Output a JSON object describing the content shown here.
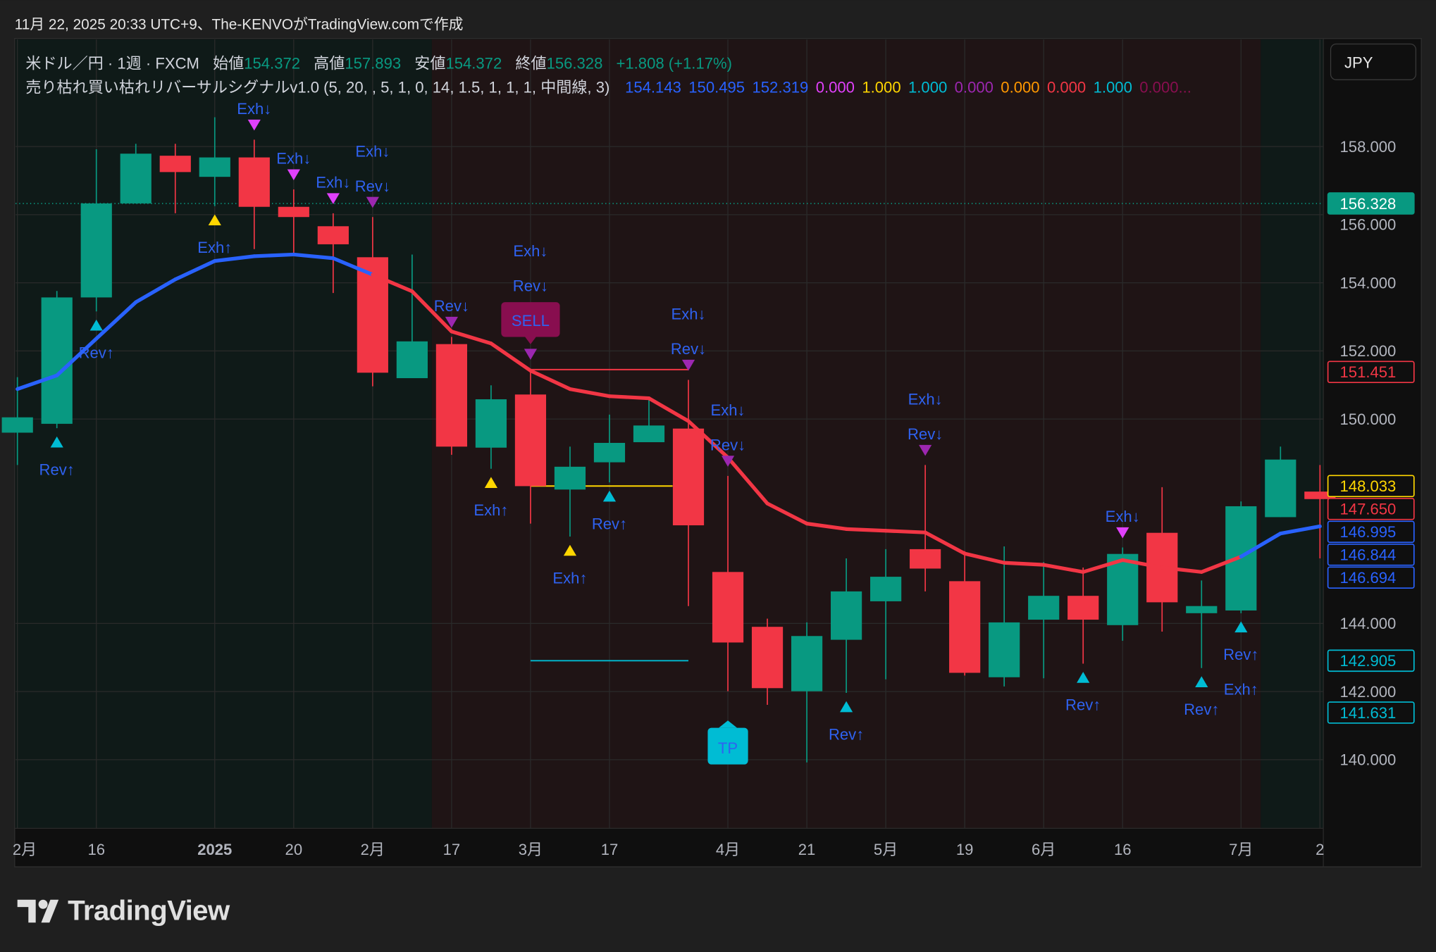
{
  "caption": "11月 22, 2025 20:33 UTC+9、The-KENVOがTradingView.comで作成",
  "legend": {
    "symbol": "米ドル／円 · 1週 · FXCM",
    "open_label": "始値",
    "open": "154.372",
    "high_label": "高値",
    "high": "157.893",
    "low_label": "安値",
    "low": "154.372",
    "close_label": "終値",
    "close": "156.328",
    "change": "+1.808 (+1.17%)",
    "indicator": "売り枯れ買い枯れリバーサルシグナルv1.0 (5, 20, , 5, 1, 0, 14, 1.5, 1, 1, 1, 中間線, 3)",
    "indicator_values": [
      {
        "v": "154.143",
        "color": "#2962ff"
      },
      {
        "v": "150.495",
        "color": "#2962ff"
      },
      {
        "v": "152.319",
        "color": "#2962ff"
      },
      {
        "v": "0.000",
        "color": "#e040fb"
      },
      {
        "v": "1.000",
        "color": "#ffd600"
      },
      {
        "v": "1.000",
        "color": "#00bcd4"
      },
      {
        "v": "0.000",
        "color": "#9c27b0"
      },
      {
        "v": "0.000",
        "color": "#ff9800"
      },
      {
        "v": "0.000",
        "color": "#f23645"
      },
      {
        "v": "1.000",
        "color": "#00bcd4"
      },
      {
        "v": "0.000...",
        "color": "#880e4f"
      }
    ]
  },
  "currency_button": "JPY",
  "logo_text": "TradingView",
  "colors": {
    "up": "#089981",
    "down": "#f23645",
    "ma_up": "#2962ff",
    "ma_down": "#f23645",
    "signal_text": "#2f62f0",
    "bg_bull": "#0f1a18",
    "bg_bear": "#1f1415"
  },
  "chart_data": {
    "type": "candlestick",
    "ylim": [
      138,
      160
    ],
    "y_ticks": [
      "158.000",
      "156.000",
      "154.000",
      "152.000",
      "150.000",
      "144.000",
      "142.000",
      "140.000"
    ],
    "y_tick_values": [
      158,
      156,
      154,
      152,
      150,
      144,
      142,
      140
    ],
    "x_ticks": [
      {
        "i": 0,
        "label": "2月"
      },
      {
        "i": 2,
        "label": "16"
      },
      {
        "i": 5,
        "label": "2025",
        "bold": true
      },
      {
        "i": 7,
        "label": "20"
      },
      {
        "i": 9,
        "label": "2月"
      },
      {
        "i": 11,
        "label": "17"
      },
      {
        "i": 13,
        "label": "3月"
      },
      {
        "i": 15,
        "label": "17"
      },
      {
        "i": 18,
        "label": "4月"
      },
      {
        "i": 20,
        "label": "21"
      },
      {
        "i": 22,
        "label": "5月"
      },
      {
        "i": 24,
        "label": "19"
      },
      {
        "i": 26,
        "label": "6月"
      },
      {
        "i": 28,
        "label": "16"
      },
      {
        "i": 31,
        "label": "7月"
      },
      {
        "i": 33,
        "label": "2"
      }
    ],
    "ohlc": [
      [
        149.6,
        151.23,
        148.65,
        150.05
      ],
      [
        149.86,
        153.76,
        149.73,
        153.57
      ],
      [
        153.57,
        157.92,
        153.16,
        156.33
      ],
      [
        156.33,
        158.08,
        156.33,
        157.79
      ],
      [
        157.73,
        158.08,
        156.04,
        157.25
      ],
      [
        157.11,
        158.86,
        156.25,
        157.68
      ],
      [
        157.68,
        158.2,
        154.99,
        156.23
      ],
      [
        156.23,
        156.74,
        154.88,
        155.93
      ],
      [
        155.66,
        156.04,
        153.7,
        155.13
      ],
      [
        154.75,
        155.93,
        150.96,
        151.36
      ],
      [
        151.2,
        154.83,
        151.2,
        152.28
      ],
      [
        152.2,
        152.41,
        148.95,
        149.19
      ],
      [
        149.16,
        150.99,
        148.54,
        150.58
      ],
      [
        150.72,
        151.47,
        146.93,
        148.03
      ],
      [
        147.93,
        149.19,
        146.55,
        148.6
      ],
      [
        148.73,
        150.13,
        148.14,
        149.3
      ],
      [
        149.32,
        150.61,
        149.32,
        149.81
      ],
      [
        149.72,
        151.15,
        144.51,
        146.88
      ],
      [
        145.51,
        148.33,
        142.01,
        143.44
      ],
      [
        143.9,
        144.14,
        141.61,
        142.1
      ],
      [
        142.01,
        144.03,
        139.92,
        143.63
      ],
      [
        143.52,
        145.91,
        141.96,
        144.94
      ],
      [
        144.65,
        146.18,
        142.36,
        145.37
      ],
      [
        146.18,
        148.65,
        144.94,
        145.61
      ],
      [
        145.24,
        146.12,
        142.47,
        142.55
      ],
      [
        142.42,
        146.26,
        142.15,
        144.03
      ],
      [
        144.11,
        145.8,
        142.39,
        144.81
      ],
      [
        144.81,
        145.64,
        142.82,
        144.11
      ],
      [
        143.95,
        146.23,
        143.49,
        146.04
      ],
      [
        146.66,
        148.0,
        143.76,
        144.62
      ],
      [
        144.3,
        145.26,
        142.69,
        144.51
      ],
      [
        144.38,
        147.58,
        144.3,
        147.44
      ],
      [
        147.12,
        149.19,
        147.12,
        148.81
      ],
      [
        147.87,
        148.65,
        145.91,
        147.65
      ]
    ],
    "ma": [
      150.88,
      151.28,
      152.36,
      153.43,
      154.1,
      154.64,
      154.78,
      154.83,
      154.72,
      154.24,
      153.75,
      152.57,
      152.22,
      151.42,
      150.88,
      150.67,
      150.61,
      149.94,
      148.87,
      147.52,
      146.93,
      146.77,
      146.72,
      146.67,
      146.05,
      145.78,
      145.72,
      145.51,
      145.86,
      145.64,
      145.51,
      145.96,
      146.64,
      146.85
    ],
    "ma_trend": [
      "up",
      "up",
      "up",
      "up",
      "up",
      "up",
      "up",
      "up",
      "up",
      "up",
      "down",
      "down",
      "down",
      "down",
      "down",
      "down",
      "down",
      "down",
      "down",
      "down",
      "down",
      "down",
      "down",
      "down",
      "down",
      "down",
      "down",
      "down",
      "down",
      "down",
      "down",
      "up",
      "up",
      "up"
    ],
    "background_regimes": [
      {
        "from": 0,
        "to": 10.5,
        "trend": "bull"
      },
      {
        "from": 10.5,
        "to": 31.5,
        "trend": "bear"
      },
      {
        "from": 31.5,
        "to": 33,
        "trend": "bull"
      }
    ],
    "signals": [
      {
        "i": 1,
        "side": "below",
        "labels": [
          "Rev↑"
        ],
        "color": "#00bcd4"
      },
      {
        "i": 2,
        "side": "below",
        "labels": [
          "Rev↑"
        ],
        "color": "#00bcd4"
      },
      {
        "i": 5,
        "side": "below",
        "labels": [
          "Exh↑"
        ],
        "color": "#ffd600"
      },
      {
        "i": 6,
        "side": "above",
        "labels": [
          "Exh↓"
        ],
        "color": "#e040fb"
      },
      {
        "i": 7,
        "side": "above",
        "labels": [
          "Exh↓"
        ],
        "color": "#e040fb"
      },
      {
        "i": 8,
        "side": "above",
        "labels": [
          "Exh↓"
        ],
        "color": "#e040fb"
      },
      {
        "i": 9,
        "side": "above",
        "labels": [
          "Rev↓",
          "Exh↓"
        ],
        "color": "#9c27b0"
      },
      {
        "i": 11,
        "side": "above",
        "labels": [
          "Rev↓"
        ],
        "color": "#9c27b0"
      },
      {
        "i": 12,
        "side": "below",
        "labels": [
          "Exh↑"
        ],
        "color": "#ffd600"
      },
      {
        "i": 13,
        "side": "above",
        "labels": [
          "Rev↓",
          "Exh↓"
        ],
        "color": "#9c27b0"
      },
      {
        "i": 14,
        "side": "below",
        "labels": [
          "Exh↑"
        ],
        "color": "#ffd600"
      },
      {
        "i": 15,
        "side": "below",
        "labels": [
          "Rev↑"
        ],
        "color": "#00bcd4"
      },
      {
        "i": 17,
        "side": "above",
        "labels": [
          "Rev↓",
          "Exh↓"
        ],
        "color": "#9c27b0"
      },
      {
        "i": 18,
        "side": "above",
        "labels": [
          "Rev↓",
          "Exh↓"
        ],
        "color": "#9c27b0"
      },
      {
        "i": 21,
        "side": "below",
        "labels": [
          "Rev↑"
        ],
        "color": "#00bcd4"
      },
      {
        "i": 23,
        "side": "above",
        "labels": [
          "Rev↓",
          "Exh↓"
        ],
        "color": "#9c27b0"
      },
      {
        "i": 27,
        "side": "below",
        "labels": [
          "Rev↑"
        ],
        "color": "#00bcd4"
      },
      {
        "i": 28,
        "side": "above",
        "labels": [
          "Exh↓"
        ],
        "color": "#e040fb"
      },
      {
        "i": 30,
        "side": "below",
        "labels": [
          "Rev↑"
        ],
        "color": "#00bcd4"
      },
      {
        "i": 31,
        "side": "below",
        "labels": [
          "Rev↑",
          "Exh↑"
        ],
        "color": "#00bcd4"
      }
    ],
    "trade_boxes": [
      {
        "i": 13,
        "label": "SELL",
        "side": "above",
        "bg": "#880e4f"
      },
      {
        "i": 18,
        "label": "TP",
        "side": "below",
        "bg": "#00bcd4"
      }
    ],
    "level_lines": [
      {
        "from": 13,
        "to": 17,
        "price": 151.451,
        "color": "#f23645"
      },
      {
        "from": 13,
        "to": 16.6,
        "price": 148.033,
        "color": "#ffd600"
      },
      {
        "from": 13,
        "to": 17,
        "price": 142.905,
        "color": "#00bcd4"
      }
    ],
    "last_price_line": {
      "price": 156.328,
      "color": "#089981"
    },
    "price_badges": [
      {
        "label": "156.328",
        "price": 156.328,
        "style": "fill",
        "color": "#089981"
      },
      {
        "label": "151.451",
        "price": 151.451,
        "style": "outline",
        "color": "#f23645"
      },
      {
        "label": "148.033",
        "price": 148.033,
        "style": "outline",
        "color": "#ffd600"
      },
      {
        "label": "147.650",
        "price": 147.65,
        "style": "outline",
        "color": "#f23645"
      },
      {
        "label": "146.995",
        "price": 146.995,
        "style": "outline",
        "color": "#2962ff"
      },
      {
        "label": "146.844",
        "price": 146.844,
        "style": "outline",
        "color": "#2962ff"
      },
      {
        "label": "146.694",
        "price": 146.694,
        "style": "outline",
        "color": "#2962ff"
      },
      {
        "label": "142.905",
        "price": 142.905,
        "style": "outline",
        "color": "#00bcd4"
      },
      {
        "label": "141.631",
        "price": 141.631,
        "style": "outline",
        "color": "#00bcd4"
      }
    ]
  }
}
